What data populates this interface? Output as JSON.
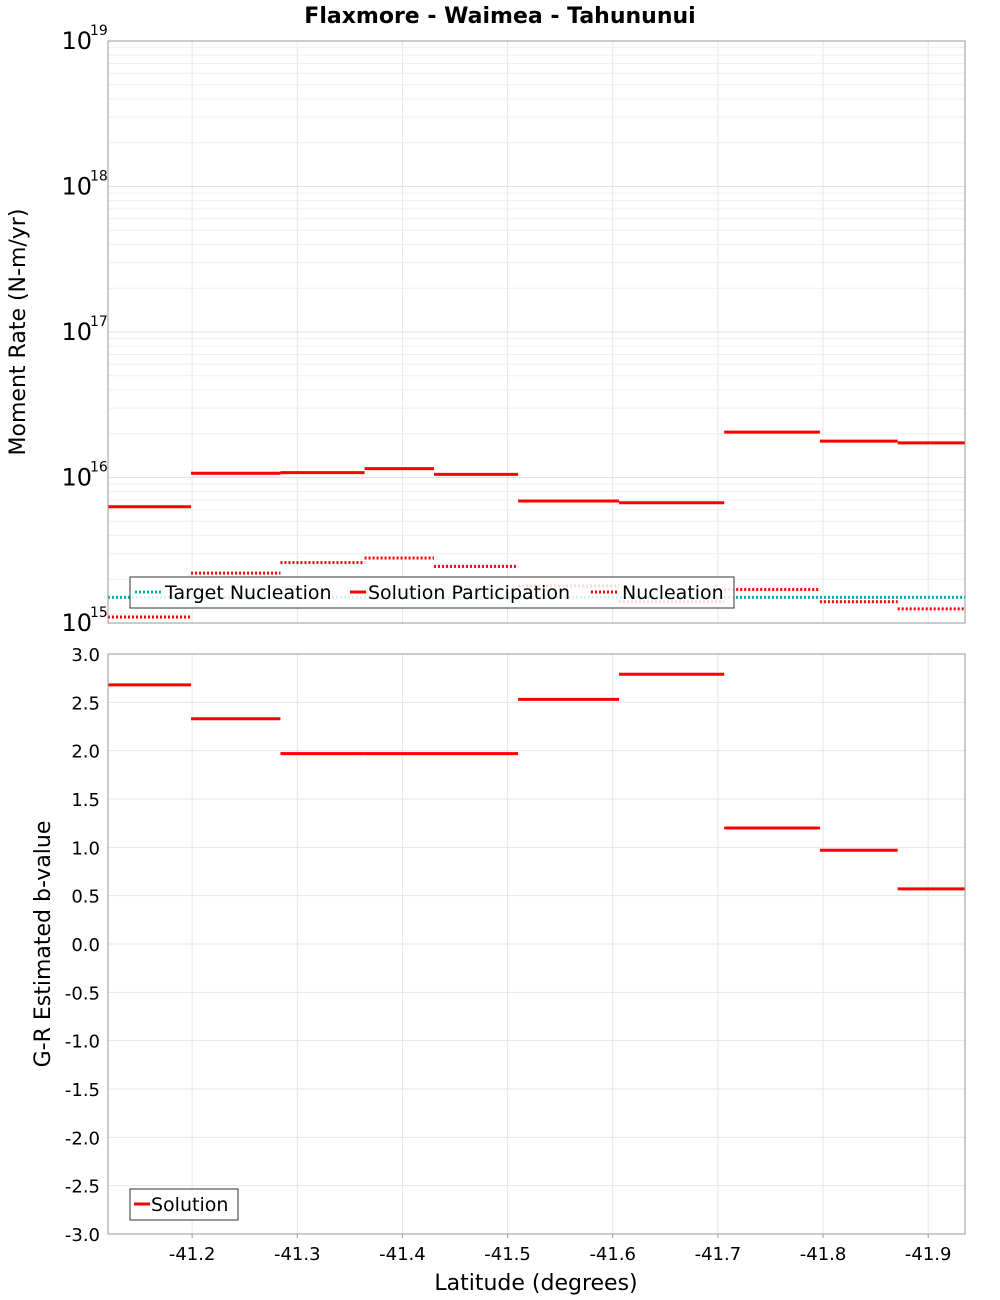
{
  "title": "Flaxmore - Waimea - Tahununui",
  "xlabel": "Latitude (degrees)",
  "x_ticks": [
    "-41.2",
    "-41.3",
    "-41.4",
    "-41.5",
    "-41.6",
    "-41.7",
    "-41.8",
    "-41.9"
  ],
  "colors": {
    "target": "#00b3b3",
    "solution": "#ff0000",
    "nucleation": "#ff0000",
    "nucleation_faint": "#ffb0b0",
    "grid": "#e6e6e6",
    "frame": "#999999"
  },
  "chart_data": [
    {
      "type": "line",
      "ylabel": "Moment Rate (N-m/yr)",
      "y_scale": "log",
      "ylim": [
        1000000000000000.0,
        1e+19
      ],
      "xlim": [
        -41.12,
        -41.935
      ],
      "y_ticks": [
        {
          "value": 1000000000000000.0,
          "base": "10",
          "exp": "15"
        },
        {
          "value": 1e+16,
          "base": "10",
          "exp": "16"
        },
        {
          "value": 1e+17,
          "base": "10",
          "exp": "17"
        },
        {
          "value": 1e+18,
          "base": "10",
          "exp": "18"
        },
        {
          "value": 1e+19,
          "base": "10",
          "exp": "19"
        }
      ],
      "legend": {
        "position": "bottom-left",
        "entries": [
          "Target Nucleation",
          "Solution Participation",
          "Nucleation"
        ]
      },
      "series": [
        {
          "name": "Target Nucleation",
          "style": "dotted",
          "segments": [
            {
              "x": [
                -41.12,
                -41.935
              ],
              "y": 1500000000000000.0
            }
          ]
        },
        {
          "name": "Solution Participation",
          "style": "solid",
          "segments": [
            {
              "x": [
                -41.12,
                -41.199
              ],
              "y": 6300000000000000.0
            },
            {
              "x": [
                -41.199,
                -41.284
              ],
              "y": 1.07e+16
            },
            {
              "x": [
                -41.284,
                -41.364
              ],
              "y": 1.08e+16
            },
            {
              "x": [
                -41.364,
                -41.43
              ],
              "y": 1.15e+16
            },
            {
              "x": [
                -41.43,
                -41.51
              ],
              "y": 1.05e+16
            },
            {
              "x": [
                -41.51,
                -41.606
              ],
              "y": 6900000000000000.0
            },
            {
              "x": [
                -41.606,
                -41.706
              ],
              "y": 6700000000000000.0
            },
            {
              "x": [
                -41.706,
                -41.797
              ],
              "y": 2.05e+16
            },
            {
              "x": [
                -41.797,
                -41.871
              ],
              "y": 1.78e+16
            },
            {
              "x": [
                -41.871,
                -41.935
              ],
              "y": 1.73e+16
            }
          ]
        },
        {
          "name": "Nucleation",
          "style": "dotted",
          "segments": [
            {
              "x": [
                -41.12,
                -41.199
              ],
              "y": 1100000000000000.0
            },
            {
              "x": [
                -41.199,
                -41.284
              ],
              "y": 2200000000000000.0
            },
            {
              "x": [
                -41.284,
                -41.364
              ],
              "y": 2600000000000000.0
            },
            {
              "x": [
                -41.364,
                -41.43
              ],
              "y": 2800000000000000.0
            },
            {
              "x": [
                -41.43,
                -41.51
              ],
              "y": 2450000000000000.0
            },
            {
              "x": [
                -41.51,
                -41.606
              ],
              "y": 1800000000000000.0
            },
            {
              "x": [
                -41.606,
                -41.706
              ],
              "y": 1400000000000000.0
            },
            {
              "x": [
                -41.706,
                -41.797
              ],
              "y": 1700000000000000.0
            },
            {
              "x": [
                -41.797,
                -41.871
              ],
              "y": 1400000000000000.0
            },
            {
              "x": [
                -41.871,
                -41.935
              ],
              "y": 1250000000000000.0
            }
          ]
        }
      ]
    },
    {
      "type": "line",
      "ylabel": "G-R Estimated b-value",
      "ylim": [
        -3.0,
        3.0
      ],
      "xlim": [
        -41.12,
        -41.935
      ],
      "y_ticks": [
        "3.0",
        "2.5",
        "2.0",
        "1.5",
        "1.0",
        "0.5",
        "0.0",
        "-0.5",
        "-1.0",
        "-1.5",
        "-2.0",
        "-2.5",
        "-3.0"
      ],
      "legend": {
        "position": "bottom-left",
        "entries": [
          "Solution"
        ]
      },
      "series": [
        {
          "name": "Solution",
          "style": "solid",
          "segments": [
            {
              "x": [
                -41.12,
                -41.199
              ],
              "y": 2.68
            },
            {
              "x": [
                -41.199,
                -41.284
              ],
              "y": 2.33
            },
            {
              "x": [
                -41.284,
                -41.364
              ],
              "y": 1.97
            },
            {
              "x": [
                -41.364,
                -41.43
              ],
              "y": 1.97
            },
            {
              "x": [
                -41.43,
                -41.51
              ],
              "y": 1.97
            },
            {
              "x": [
                -41.51,
                -41.606
              ],
              "y": 2.53
            },
            {
              "x": [
                -41.606,
                -41.706
              ],
              "y": 2.79
            },
            {
              "x": [
                -41.706,
                -41.797
              ],
              "y": 1.2
            },
            {
              "x": [
                -41.797,
                -41.871
              ],
              "y": 0.97
            },
            {
              "x": [
                -41.871,
                -41.935
              ],
              "y": 0.57
            }
          ]
        }
      ]
    }
  ]
}
